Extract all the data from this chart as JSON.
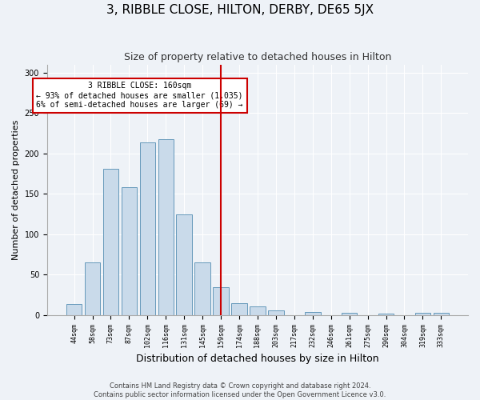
{
  "title": "3, RIBBLE CLOSE, HILTON, DERBY, DE65 5JX",
  "subtitle": "Size of property relative to detached houses in Hilton",
  "xlabel": "Distribution of detached houses by size in Hilton",
  "ylabel": "Number of detached properties",
  "categories": [
    "44sqm",
    "58sqm",
    "73sqm",
    "87sqm",
    "102sqm",
    "116sqm",
    "131sqm",
    "145sqm",
    "159sqm",
    "174sqm",
    "188sqm",
    "203sqm",
    "217sqm",
    "232sqm",
    "246sqm",
    "261sqm",
    "275sqm",
    "290sqm",
    "304sqm",
    "319sqm",
    "333sqm"
  ],
  "values": [
    14,
    65,
    181,
    158,
    214,
    218,
    125,
    65,
    35,
    15,
    11,
    6,
    0,
    4,
    0,
    3,
    0,
    2,
    0,
    3,
    3
  ],
  "bar_color": "#c9daea",
  "bar_edge_color": "#6699bb",
  "vline_position": 8,
  "vline_color": "#cc0000",
  "annotation_text_line1": "3 RIBBLE CLOSE: 160sqm",
  "annotation_text_line2": "← 93% of detached houses are smaller (1,035)",
  "annotation_text_line3": "6% of semi-detached houses are larger (69) →",
  "annotation_box_edge": "#cc0000",
  "footer1": "Contains HM Land Registry data © Crown copyright and database right 2024.",
  "footer2": "Contains public sector information licensed under the Open Government Licence v3.0.",
  "ylim": [
    0,
    310
  ],
  "background_color": "#eef2f7",
  "grid_color": "#ffffff",
  "title_fontsize": 11,
  "subtitle_fontsize": 9,
  "ylabel_fontsize": 8,
  "xlabel_fontsize": 9,
  "tick_fontsize": 6,
  "footer_fontsize": 6
}
